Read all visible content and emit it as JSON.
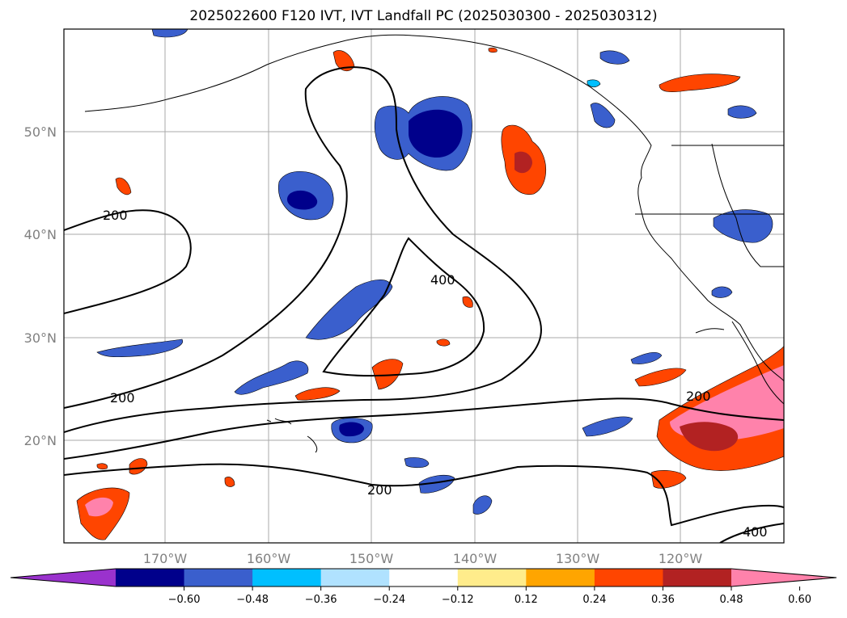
{
  "title": "2025022600 F120 IVT, IVT Landfall PC (2025030300 - 2025030312)",
  "lat_labels": [
    "50°N",
    "40°N",
    "30°N",
    "20°N"
  ],
  "lon_labels": [
    "170°W",
    "160°W",
    "150°W",
    "140°W",
    "130°W",
    "120°W"
  ],
  "contour_labels": [
    "200",
    "200",
    "200",
    "200",
    "400",
    "400"
  ],
  "colorbar": {
    "ticks": [
      "−0.60",
      "−0.48",
      "−0.36",
      "−0.24",
      "−0.12",
      "0.12",
      "0.24",
      "0.36",
      "0.48",
      "0.60"
    ],
    "colors": [
      "#9a32cd",
      "#00008b",
      "#3a5fcd",
      "#00bfff",
      "#b0e2ff",
      "#ffffff",
      "#ffec8b",
      "#ffa500",
      "#ff4500",
      "#b22222",
      "#ff82ab"
    ]
  },
  "colors": {
    "land_outline": "#000000",
    "gridline": "#aaaaaa",
    "contour": "#000000"
  }
}
